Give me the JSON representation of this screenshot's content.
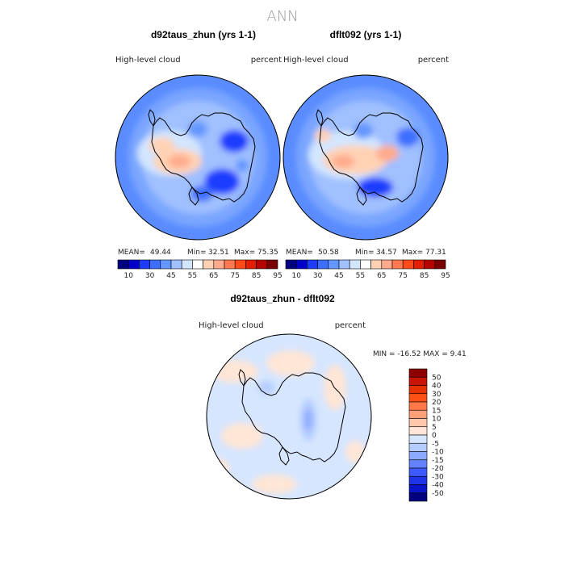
{
  "chart_data": {
    "type": "heatmap",
    "title": "ANN",
    "panels": [
      {
        "id": "d92",
        "title": "d92taus_zhun (yrs 1-1)",
        "variable": "High-level  cloud",
        "units": "percent",
        "stats": [
          {
            "label": "MEAN=",
            "value": "49.44"
          },
          {
            "label": "Min=",
            "value": "32.51"
          },
          {
            "label": "Max=",
            "value": "75.35"
          }
        ]
      },
      {
        "id": "dflt",
        "title": "dflt092 (yrs 1-1)",
        "variable": "High-level  cloud",
        "units": "percent",
        "stats": [
          {
            "label": "MEAN=",
            "value": "50.58"
          },
          {
            "label": "Min=",
            "value": "34.57"
          },
          {
            "label": "Max=",
            "value": "77.31"
          }
        ]
      },
      {
        "id": "diff",
        "title": "d92taus_zhun - dflt092",
        "variable": "High-level  cloud",
        "units": "percent",
        "stats_text": "MIN = -16.52 MAX =    9.41"
      }
    ],
    "colorbar_main": {
      "colors": [
        "#000080",
        "#0000c8",
        "#1e3cff",
        "#3c6eff",
        "#6496ff",
        "#a0c0ff",
        "#d2e6ff",
        "#ffffff",
        "#ffd2b4",
        "#ffaa8c",
        "#ff7850",
        "#ff4b19",
        "#e61e00",
        "#b40000",
        "#780000"
      ],
      "tick_labels": [
        "10",
        "30",
        "45",
        "55",
        "65",
        "75",
        "85",
        "95"
      ]
    },
    "colorbar_diff": {
      "colors_top_to_bottom": [
        "#8c0000",
        "#c81400",
        "#e63200",
        "#ff5014",
        "#ff7846",
        "#ffa078",
        "#ffc8aa",
        "#ffe6d6",
        "#d6e6ff",
        "#b4ccff",
        "#8caaff",
        "#6482ff",
        "#3c5aff",
        "#1e32e6",
        "#0a14c8",
        "#000080"
      ],
      "tick_labels": [
        "50",
        "40",
        "30",
        "20",
        "15",
        "10",
        "5",
        "0",
        "-5",
        "-10",
        "-15",
        "-20",
        "-30",
        "-40",
        "-50"
      ]
    }
  }
}
